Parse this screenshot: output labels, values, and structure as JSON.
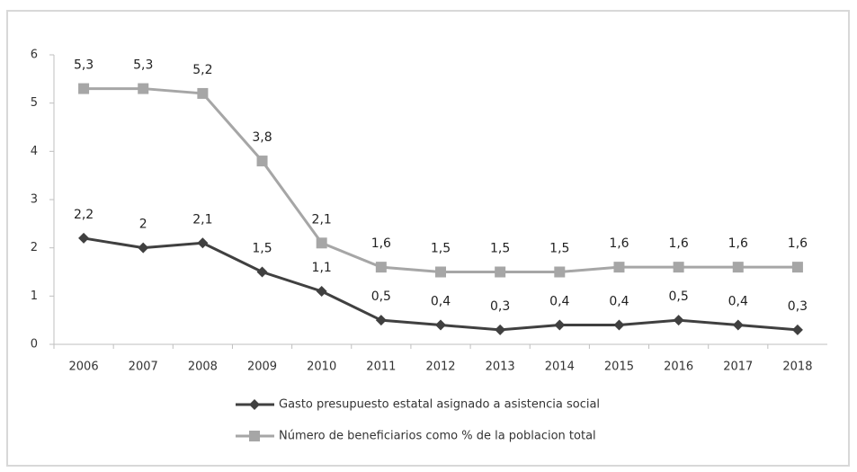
{
  "chart_data": {
    "type": "line",
    "categories": [
      "2006",
      "2007",
      "2008",
      "2009",
      "2010",
      "2011",
      "2012",
      "2013",
      "2014",
      "2015",
      "2016",
      "2017",
      "2018"
    ],
    "series": [
      {
        "name": "Gasto presupuesto estatal asignado a asistencia social",
        "color": "#404040",
        "marker": "diamond",
        "values": [
          2.2,
          2,
          2.1,
          1.5,
          1.1,
          0.5,
          0.4,
          0.3,
          0.4,
          0.4,
          0.5,
          0.4,
          0.3
        ],
        "value_labels": [
          "2,2",
          "2",
          "2,1",
          "1,5",
          "1,1",
          "0,5",
          "0,4",
          "0,3",
          "0,4",
          "0,4",
          "0,5",
          "0,4",
          "0,3"
        ]
      },
      {
        "name": "Número de beneficiarios como % de la poblacion total",
        "color": "#a6a6a6",
        "marker": "square",
        "values": [
          5.3,
          5.3,
          5.2,
          3.8,
          2.1,
          1.6,
          1.5,
          1.5,
          1.5,
          1.6,
          1.6,
          1.6,
          1.6
        ],
        "value_labels": [
          "5,3",
          "5,3",
          "5,2",
          "3,8",
          "2,1",
          "1,6",
          "1,5",
          "1,5",
          "1,5",
          "1,6",
          "1,6",
          "1,6",
          "1,6"
        ]
      }
    ],
    "ylim": [
      0,
      6
    ],
    "yticks": [
      0,
      1,
      2,
      3,
      4,
      5,
      6
    ],
    "grid": false,
    "legend": "bottom"
  }
}
